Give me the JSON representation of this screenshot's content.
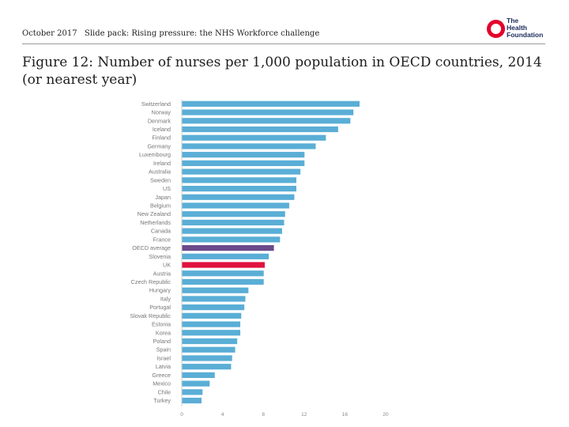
{
  "header": {
    "date": "October 2017",
    "deck": "Slide pack: Rising pressure: the NHS Workforce challenge",
    "logo_text": "The\nHealth\nFoundation"
  },
  "colors": {
    "bar": "#5aaed6",
    "average": "#6a4a8a",
    "uk": "#e0123f",
    "axis": "#cfcfcf",
    "logo_red": "#e4002b",
    "logo_navy": "#1b2b5b"
  },
  "chart_data": {
    "type": "bar",
    "orientation": "horizontal",
    "title": "Figure 12: Number of nurses per 1,000 population in OECD countries, 2014 (or nearest year)",
    "categories": [
      "Switzerland",
      "Norway",
      "Denmark",
      "Iceland",
      "Finland",
      "Germany",
      "Luxembourg",
      "Ireland",
      "Australia",
      "Sweden",
      "US",
      "Japan",
      "Belgium",
      "New Zealand",
      "Netherlands",
      "Canada",
      "France",
      "OECD average",
      "Slovenia",
      "UK",
      "Austria",
      "Czech Republic",
      "Hungary",
      "Italy",
      "Portugal",
      "Slovak Republic",
      "Estonia",
      "Korea",
      "Poland",
      "Spain",
      "Israel",
      "Latvia",
      "Greece",
      "Mexico",
      "Chile",
      "Turkey"
    ],
    "values": [
      17.4,
      16.8,
      16.5,
      15.3,
      14.1,
      13.1,
      12.0,
      12.0,
      11.6,
      11.2,
      11.2,
      11.0,
      10.5,
      10.1,
      10.0,
      9.8,
      9.6,
      9.0,
      8.5,
      8.1,
      8.0,
      8.0,
      6.5,
      6.2,
      6.1,
      5.8,
      5.7,
      5.7,
      5.4,
      5.2,
      4.9,
      4.8,
      3.2,
      2.7,
      2.0,
      1.9
    ],
    "highlights": {
      "OECD average": "average",
      "UK": "uk"
    },
    "xticks": [
      0,
      4,
      8,
      12,
      16,
      20
    ],
    "xlim": [
      0,
      20
    ],
    "xlabel": "",
    "ylabel": ""
  }
}
